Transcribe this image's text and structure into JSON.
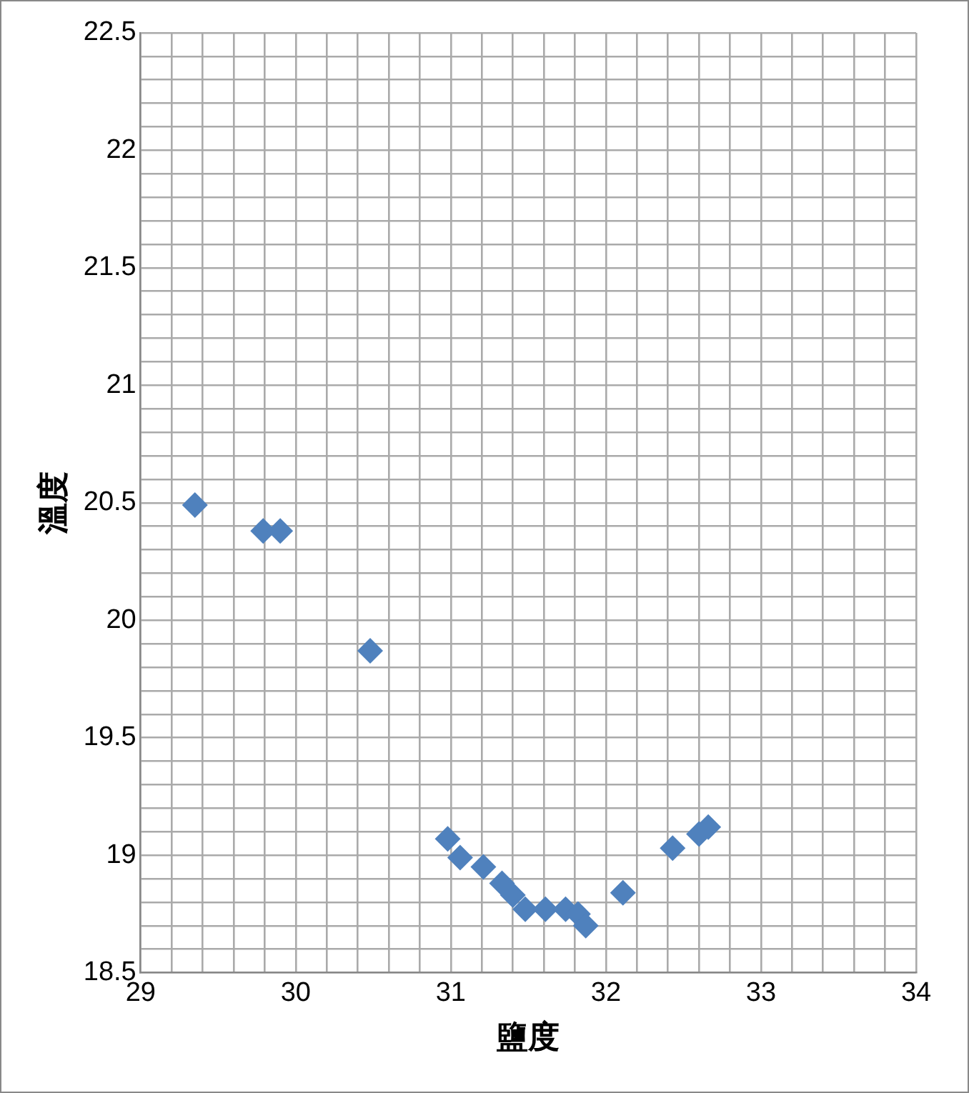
{
  "chart_data": {
    "type": "scatter",
    "xlabel": "鹽度",
    "ylabel": "溫度",
    "marker": "diamond",
    "grid": true,
    "legend": false,
    "xlim": [
      29,
      34
    ],
    "ylim": [
      18.5,
      22.5
    ],
    "xticks": [
      29,
      {
        "value": 29.2,
        "label": null
      },
      {
        "value": 29.4,
        "label": null
      },
      {
        "value": 29.6,
        "label": null
      },
      {
        "value": 29.8,
        "label": null
      },
      30,
      {
        "value": 30.2,
        "label": null
      },
      {
        "value": 30.4,
        "label": null
      },
      {
        "value": 30.6,
        "label": null
      },
      {
        "value": 30.8,
        "label": null
      },
      31,
      {
        "value": 31.2,
        "label": null
      },
      {
        "value": 31.4,
        "label": null
      },
      {
        "value": 31.6,
        "label": null
      },
      {
        "value": 31.8,
        "label": null
      },
      32,
      {
        "value": 32.2,
        "label": null
      },
      {
        "value": 32.4,
        "label": null
      },
      {
        "value": 32.6,
        "label": null
      },
      {
        "value": 32.8,
        "label": null
      },
      33,
      {
        "value": 33.2,
        "label": null
      },
      {
        "value": 33.4,
        "label": null
      },
      {
        "value": 33.6,
        "label": null
      },
      {
        "value": 33.8,
        "label": null
      },
      34
    ],
    "yticks": [
      18.5,
      {
        "value": 18.6,
        "label": null
      },
      {
        "value": 18.7,
        "label": null
      },
      {
        "value": 18.8,
        "label": null
      },
      {
        "value": 18.9,
        "label": null
      },
      19,
      {
        "value": 19.1,
        "label": null
      },
      {
        "value": 19.2,
        "label": null
      },
      {
        "value": 19.3,
        "label": null
      },
      {
        "value": 19.4,
        "label": null
      },
      19.5,
      {
        "value": 19.6,
        "label": null
      },
      {
        "value": 19.7,
        "label": null
      },
      {
        "value": 19.8,
        "label": null
      },
      {
        "value": 19.9,
        "label": null
      },
      20,
      {
        "value": 20.1,
        "label": null
      },
      {
        "value": 20.2,
        "label": null
      },
      {
        "value": 20.3,
        "label": null
      },
      {
        "value": 20.4,
        "label": null
      },
      20.5,
      {
        "value": 20.6,
        "label": null
      },
      {
        "value": 20.7,
        "label": null
      },
      {
        "value": 20.8,
        "label": null
      },
      {
        "value": 20.9,
        "label": null
      },
      21,
      {
        "value": 21.1,
        "label": null
      },
      {
        "value": 21.2,
        "label": null
      },
      {
        "value": 21.3,
        "label": null
      },
      {
        "value": 21.4,
        "label": null
      },
      21.5,
      {
        "value": 21.6,
        "label": null
      },
      {
        "value": 21.7,
        "label": null
      },
      {
        "value": 21.8,
        "label": null
      },
      {
        "value": 21.9,
        "label": null
      },
      22,
      {
        "value": 22.1,
        "label": null
      },
      {
        "value": 22.2,
        "label": null
      },
      {
        "value": 22.3,
        "label": null
      },
      {
        "value": 22.4,
        "label": null
      },
      22.5
    ],
    "series": [
      {
        "color": "#4f81bd",
        "x": [
          29.35,
          29.79,
          29.9,
          30.48,
          30.98,
          31.06,
          31.21,
          31.33,
          31.4,
          31.48,
          31.61,
          31.74,
          31.82,
          31.87,
          32.11,
          32.43,
          32.6,
          32.66
        ],
        "values": [
          20.49,
          20.38,
          20.38,
          19.87,
          19.07,
          18.99,
          18.95,
          18.88,
          18.83,
          18.77,
          18.77,
          18.77,
          18.75,
          18.7,
          18.84,
          19.03,
          19.09,
          19.12
        ]
      }
    ]
  }
}
